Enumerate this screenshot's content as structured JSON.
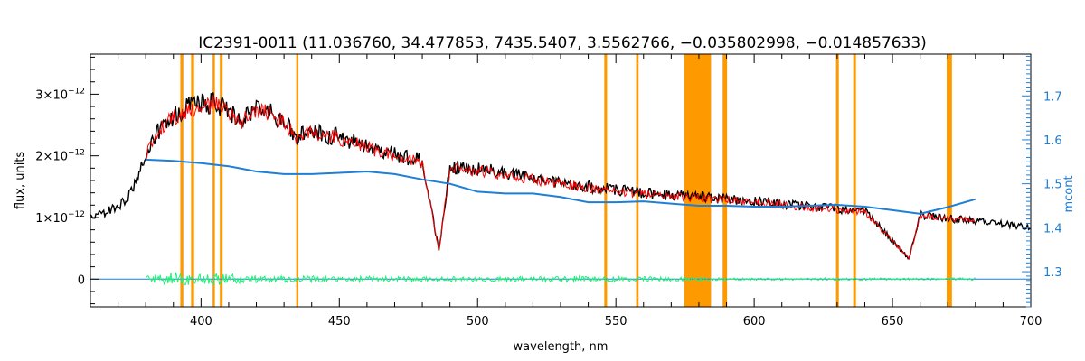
{
  "chart_data": {
    "type": "line",
    "title": "IC2391-0011   (11.036760, 34.477853, 7435.5407, 3.5562766, −0.035802998, −0.014857633)",
    "xlabel": "wavelength, nm",
    "ylabel": "flux, units",
    "y2label": "mcont",
    "xlim": [
      360,
      700
    ],
    "ylim": [
      -4.5e-13,
      3.65e-12
    ],
    "y2lim": [
      1.22,
      1.795
    ],
    "x_ticks": [
      "400",
      "450",
      "500",
      "550",
      "600",
      "650",
      "700"
    ],
    "x_tick_values": [
      400,
      450,
      500,
      550,
      600,
      650,
      700
    ],
    "y_ticks": [
      {
        "value": 0,
        "mant": "0",
        "exp": ""
      },
      {
        "value": 1e-12,
        "mant": "1×10",
        "exp": "−12"
      },
      {
        "value": 2e-12,
        "mant": "2×10",
        "exp": "−12"
      },
      {
        "value": 3e-12,
        "mant": "3×10",
        "exp": "−12"
      }
    ],
    "y2_ticks": [
      "1.3",
      "1.4",
      "1.5",
      "1.6",
      "1.7"
    ],
    "y2_tick_values": [
      1.3,
      1.4,
      1.5,
      1.6,
      1.7
    ],
    "grid": false,
    "masked_bands": [
      {
        "x0": 392.5,
        "x1": 393.6
      },
      {
        "x0": 396.4,
        "x1": 397.5
      },
      {
        "x0": 404.2,
        "x1": 405.0
      },
      {
        "x0": 406.8,
        "x1": 407.8
      },
      {
        "x0": 434.4,
        "x1": 435.2
      },
      {
        "x0": 545.8,
        "x1": 546.8
      },
      {
        "x0": 557.3,
        "x1": 558.2
      },
      {
        "x0": 574.7,
        "x1": 584.4
      },
      {
        "x0": 588.6,
        "x1": 590.2
      },
      {
        "x0": 629.6,
        "x1": 630.6
      },
      {
        "x0": 635.8,
        "x1": 636.8
      },
      {
        "x0": 669.6,
        "x1": 671.5
      }
    ],
    "series": [
      {
        "id": "observed",
        "color": "#000000",
        "x": [
          360,
          365,
          370,
          375,
          380,
          385,
          390,
          395,
          400,
          405,
          410,
          415,
          420,
          425,
          430,
          435,
          440,
          450,
          460,
          470,
          480,
          486,
          490,
          500,
          520,
          540,
          560,
          580,
          600,
          620,
          640,
          656,
          660,
          680,
          700
        ],
        "y": [
          1.1e-12,
          1.15e-12,
          1.25e-12,
          1.5e-12,
          2.2e-12,
          2.6e-12,
          2.8e-12,
          2.95e-12,
          3e-12,
          3.05e-12,
          2.9e-12,
          2.75e-12,
          2.95e-12,
          2.9e-12,
          2.7e-12,
          2.45e-12,
          2.55e-12,
          2.45e-12,
          2.3e-12,
          2.15e-12,
          2.05e-12,
          5e-13,
          1.95e-12,
          1.9e-12,
          1.75e-12,
          1.6e-12,
          1.48e-12,
          1.42e-12,
          1.35e-12,
          1.25e-12,
          1.18e-12,
          3.5e-13,
          1.1e-12,
          1e-12,
          9e-13
        ]
      },
      {
        "id": "model",
        "color": "#ff0000",
        "x": [
          380,
          385,
          390,
          395,
          400,
          405,
          410,
          415,
          420,
          425,
          430,
          435,
          440,
          450,
          460,
          470,
          480,
          486,
          490,
          500,
          520,
          540,
          560,
          575,
          585,
          600,
          620,
          640,
          656,
          660,
          670,
          680
        ],
        "y": [
          2.1e-12,
          2.55e-12,
          2.75e-12,
          2.9e-12,
          2.95e-12,
          3e-12,
          2.85e-12,
          2.7e-12,
          2.9e-12,
          2.85e-12,
          2.65e-12,
          2.4e-12,
          2.5e-12,
          2.4e-12,
          2.25e-12,
          2.1e-12,
          2e-12,
          5e-13,
          1.9e-12,
          1.85e-12,
          1.7e-12,
          1.56e-12,
          1.45e-12,
          1.4e-12,
          1.37e-12,
          1.32e-12,
          1.22e-12,
          1.15e-12,
          3.5e-13,
          1.08e-12,
          1.03e-12,
          1e-12
        ]
      },
      {
        "id": "mcont",
        "color": "#1e7fd6",
        "axis": "right",
        "x": [
          380,
          390,
          400,
          410,
          420,
          430,
          440,
          450,
          460,
          470,
          480,
          490,
          500,
          510,
          520,
          530,
          540,
          550,
          560,
          570,
          580,
          590,
          600,
          610,
          620,
          630,
          640,
          650,
          660,
          670,
          680
        ],
        "y": [
          1.555,
          1.552,
          1.547,
          1.54,
          1.528,
          1.522,
          1.522,
          1.525,
          1.528,
          1.522,
          1.51,
          1.5,
          1.482,
          1.478,
          1.478,
          1.47,
          1.458,
          1.458,
          1.46,
          1.455,
          1.45,
          1.45,
          1.448,
          1.448,
          1.45,
          1.452,
          1.448,
          1.44,
          1.432,
          1.447,
          1.465
        ]
      },
      {
        "id": "residuals",
        "color": "#22ee77",
        "x": [
          380,
          390,
          400,
          410,
          420,
          430,
          440,
          450,
          460,
          480,
          500,
          520,
          540,
          560,
          580,
          600,
          620,
          640,
          660,
          680
        ],
        "y": [
          5e-14,
          1.2e-13,
          8e-14,
          1e-13,
          6e-14,
          5e-14,
          6e-14,
          4e-14,
          5e-14,
          4e-14,
          4e-14,
          4e-14,
          5e-14,
          4e-14,
          3e-14,
          2e-14,
          2e-14,
          2e-14,
          2e-14,
          2e-14
        ]
      }
    ]
  }
}
